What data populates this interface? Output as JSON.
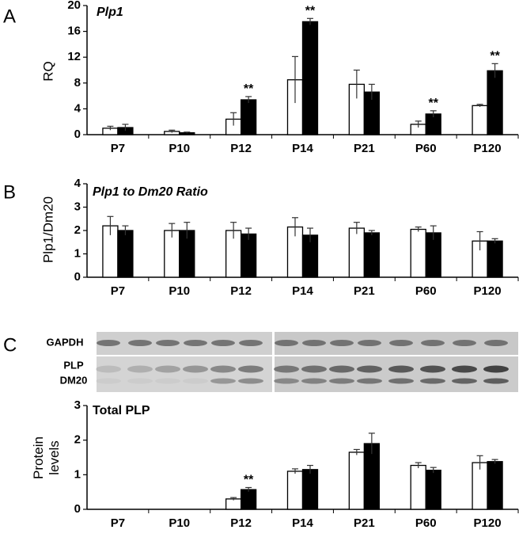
{
  "panel_labels": [
    "A",
    "B",
    "C"
  ],
  "blot_labels": [
    "GAPDH",
    "PLP",
    "DM20"
  ],
  "chart_data": [
    {
      "type": "bar",
      "title": "Plp1",
      "title_italic": true,
      "ylabel": "RQ",
      "categories": [
        "P7",
        "P10",
        "P12",
        "P14",
        "P21",
        "P60",
        "P120"
      ],
      "ylim": [
        0,
        20
      ],
      "yticks": [
        0,
        4,
        8,
        12,
        16,
        20
      ],
      "series": [
        {
          "color": "#ffffff",
          "values": [
            1.0,
            0.5,
            2.4,
            8.5,
            7.8,
            1.6,
            4.5
          ],
          "errors": [
            0.3,
            0.2,
            1.0,
            3.6,
            2.2,
            0.5,
            0.2
          ]
        },
        {
          "color": "#000000",
          "values": [
            1.1,
            0.3,
            5.4,
            17.5,
            6.6,
            3.2,
            9.9
          ],
          "errors": [
            0.5,
            0.1,
            0.5,
            0.5,
            1.2,
            0.5,
            1.1
          ],
          "annotations": [
            null,
            null,
            "**",
            "**",
            null,
            "**",
            "**"
          ]
        }
      ]
    },
    {
      "type": "bar",
      "title": "Plp1 to Dm20 Ratio",
      "title_italic": true,
      "ylabel": "Plp1/Dm20",
      "categories": [
        "P7",
        "P10",
        "P12",
        "P14",
        "P21",
        "P60",
        "P120"
      ],
      "ylim": [
        0,
        4
      ],
      "yticks": [
        0,
        1,
        2,
        3,
        4
      ],
      "series": [
        {
          "color": "#ffffff",
          "values": [
            2.2,
            2.0,
            2.0,
            2.15,
            2.1,
            2.05,
            1.55
          ],
          "errors": [
            0.4,
            0.3,
            0.35,
            0.4,
            0.25,
            0.1,
            0.4
          ]
        },
        {
          "color": "#000000",
          "values": [
            2.0,
            2.0,
            1.85,
            1.8,
            1.9,
            1.9,
            1.55
          ],
          "errors": [
            0.2,
            0.35,
            0.25,
            0.3,
            0.1,
            0.3,
            0.1
          ]
        }
      ]
    },
    {
      "type": "bar",
      "title": "Total PLP",
      "title_italic": false,
      "ylabel": "Protein levels",
      "categories": [
        "P7",
        "P10",
        "P12",
        "P14",
        "P21",
        "P60",
        "P120"
      ],
      "ylim": [
        0,
        3
      ],
      "yticks": [
        0,
        1,
        2,
        3
      ],
      "series": [
        {
          "color": "#ffffff",
          "values": [
            null,
            null,
            0.3,
            1.1,
            1.65,
            1.27,
            1.35
          ],
          "errors": [
            null,
            null,
            0.04,
            0.07,
            0.08,
            0.08,
            0.2
          ]
        },
        {
          "color": "#000000",
          "values": [
            null,
            null,
            0.57,
            1.15,
            1.9,
            1.13,
            1.38
          ],
          "errors": [
            null,
            null,
            0.06,
            0.12,
            0.3,
            0.08,
            0.06
          ],
          "annotations": [
            null,
            null,
            "**",
            null,
            null,
            null,
            null
          ]
        }
      ]
    }
  ]
}
